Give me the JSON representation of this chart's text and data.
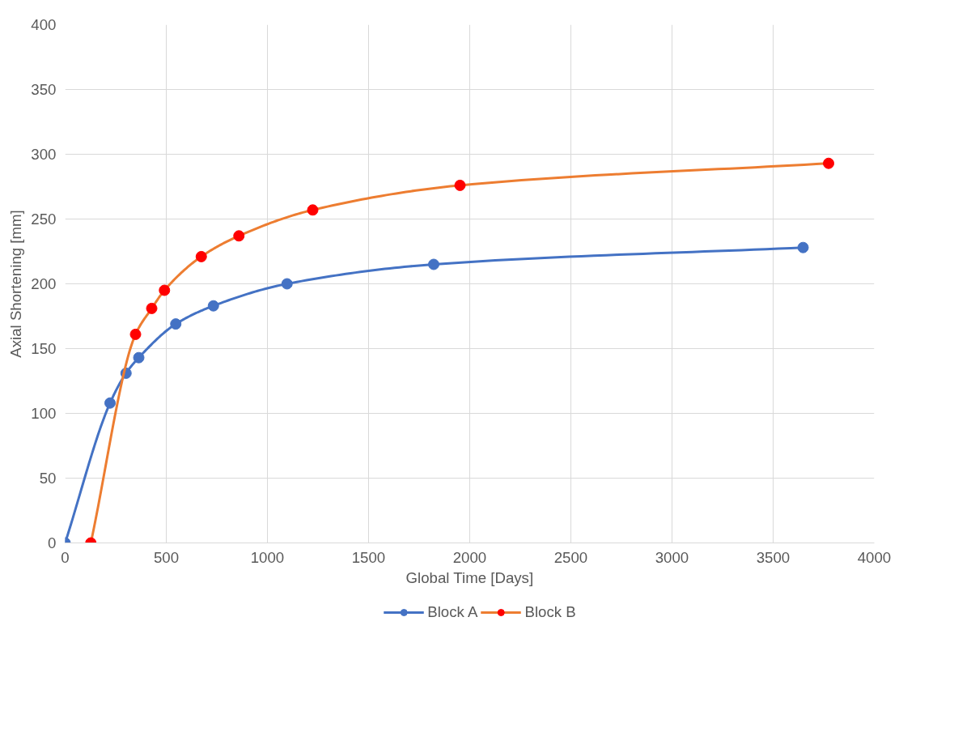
{
  "chart_data": {
    "type": "line",
    "xlabel": "Global Time [Days]",
    "ylabel": "Axial Shortening [mm]",
    "xlim": [
      0,
      4000
    ],
    "xticks": [
      0,
      500,
      1000,
      1500,
      2000,
      2500,
      3000,
      3500,
      4000
    ],
    "ylim": [
      0,
      400
    ],
    "yticks": [
      0,
      50,
      100,
      150,
      200,
      250,
      300,
      350,
      400
    ],
    "grid": true,
    "legend": "bottom",
    "marker": "circle",
    "line_style": "solid",
    "series": [
      {
        "name": "Block A",
        "color": "#4472c4",
        "x": [
          0,
          222,
          301,
          364,
          547,
          733,
          1097,
          1822,
          3648
        ],
        "values": [
          0,
          108,
          131,
          143,
          169,
          183,
          200,
          215,
          228
        ]
      },
      {
        "name": "Block B",
        "color": "#ed7d31",
        "colors": [
          "#ff0000",
          "#ff0000",
          "#ff0000",
          "#ff0000",
          "#ff0000",
          "#ff0000",
          "#ff0000",
          "#ff0000",
          "#ff0000"
        ],
        "x": [
          127,
          348,
          428,
          491,
          673,
          859,
          1224,
          1952,
          3774
        ],
        "values": [
          0,
          161,
          181,
          195,
          221,
          237,
          257,
          276,
          293
        ]
      }
    ]
  }
}
